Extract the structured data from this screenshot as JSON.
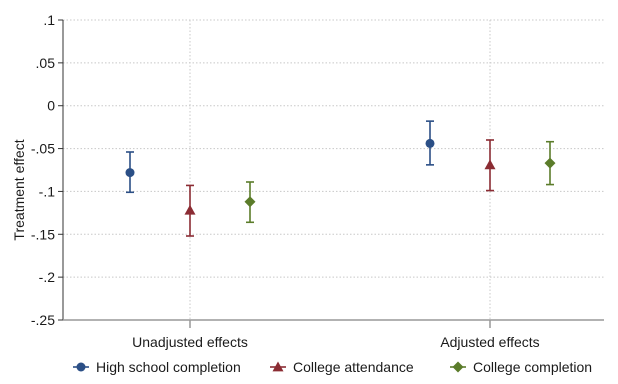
{
  "chart_data": {
    "type": "scatter",
    "subtype": "point-estimate-with-confidence-intervals",
    "ylabel": "Treatment effect",
    "xlabel": "",
    "ylim": [
      -0.25,
      0.1
    ],
    "yticks": [
      0.1,
      0.05,
      0,
      -0.05,
      -0.1,
      -0.15,
      -0.2,
      -0.25
    ],
    "ytick_labels": [
      ".1",
      ".05",
      "0",
      "-.05",
      "-.1",
      "-.15",
      "-.2",
      "-.25"
    ],
    "categories": [
      "Unadjusted effects",
      "Adjusted effects"
    ],
    "grid": true,
    "legend_position": "bottom",
    "series": [
      {
        "name": "High school completion",
        "color": "#2b4f86",
        "marker": "circle",
        "estimates": [
          -0.078,
          -0.044
        ],
        "ci_low": [
          -0.101,
          -0.069
        ],
        "ci_high": [
          -0.054,
          -0.018
        ]
      },
      {
        "name": "College attendance",
        "color": "#8b2c33",
        "marker": "triangle",
        "estimates": [
          -0.122,
          -0.069
        ],
        "ci_low": [
          -0.152,
          -0.099
        ],
        "ci_high": [
          -0.093,
          -0.04
        ]
      },
      {
        "name": "College completion",
        "color": "#5b7c2a",
        "marker": "diamond",
        "estimates": [
          -0.112,
          -0.067
        ],
        "ci_low": [
          -0.136,
          -0.092
        ],
        "ci_high": [
          -0.089,
          -0.042
        ]
      }
    ]
  }
}
